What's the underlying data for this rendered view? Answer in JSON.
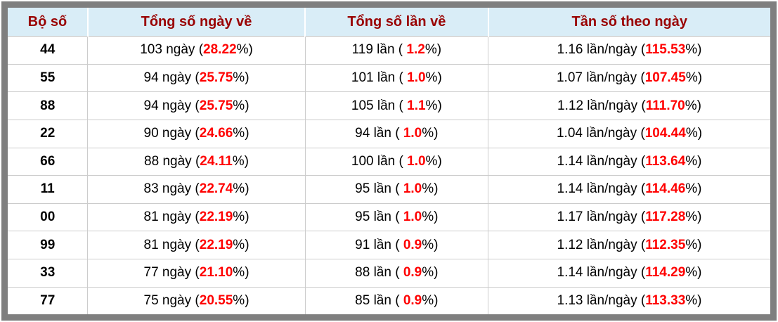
{
  "table": {
    "headers": [
      "Bộ số",
      "Tổng số ngày về",
      "Tổng số lần về",
      "Tần số theo ngày"
    ],
    "rows": [
      {
        "pair": "44",
        "days": "103 ngày",
        "days_pct": "28.22",
        "times": "119 lần",
        "times_pct": "1.2",
        "freq": "1.16 lần/ngày",
        "freq_pct": "115.53"
      },
      {
        "pair": "55",
        "days": "94 ngày",
        "days_pct": "25.75",
        "times": "101 lần",
        "times_pct": "1.0",
        "freq": "1.07 lần/ngày",
        "freq_pct": "107.45"
      },
      {
        "pair": "88",
        "days": "94 ngày",
        "days_pct": "25.75",
        "times": "105 lần",
        "times_pct": "1.1",
        "freq": "1.12 lần/ngày",
        "freq_pct": "111.70"
      },
      {
        "pair": "22",
        "days": "90 ngày",
        "days_pct": "24.66",
        "times": "94 lần",
        "times_pct": "1.0",
        "freq": "1.04 lần/ngày",
        "freq_pct": "104.44"
      },
      {
        "pair": "66",
        "days": "88 ngày",
        "days_pct": "24.11",
        "times": "100 lần",
        "times_pct": "1.0",
        "freq": "1.14 lần/ngày",
        "freq_pct": "113.64"
      },
      {
        "pair": "11",
        "days": "83 ngày",
        "days_pct": "22.74",
        "times": "95 lần",
        "times_pct": "1.0",
        "freq": "1.14 lần/ngày",
        "freq_pct": "114.46"
      },
      {
        "pair": "00",
        "days": "81 ngày",
        "days_pct": "22.19",
        "times": "95 lần",
        "times_pct": "1.0",
        "freq": "1.17 lần/ngày",
        "freq_pct": "117.28"
      },
      {
        "pair": "99",
        "days": "81 ngày",
        "days_pct": "22.19",
        "times": "91 lần",
        "times_pct": "0.9",
        "freq": "1.12 lần/ngày",
        "freq_pct": "112.35"
      },
      {
        "pair": "33",
        "days": "77 ngày",
        "days_pct": "21.10",
        "times": "88 lần",
        "times_pct": "0.9",
        "freq": "1.14 lần/ngày",
        "freq_pct": "114.29"
      },
      {
        "pair": "77",
        "days": "75 ngày",
        "days_pct": "20.55",
        "times": "85 lần",
        "times_pct": "0.9",
        "freq": "1.13 lần/ngày",
        "freq_pct": "113.33"
      }
    ]
  },
  "chart_data": {
    "type": "table",
    "columns": [
      "Bộ số",
      "Tổng số ngày về",
      "Tổng số lần về",
      "Tần số theo ngày"
    ],
    "rows": [
      [
        "44",
        "103 ngày (28.22%)",
        "119 lần ( 1.2%)",
        "1.16 lần/ngày (115.53%)"
      ],
      [
        "55",
        "94 ngày (25.75%)",
        "101 lần ( 1.0%)",
        "1.07 lần/ngày (107.45%)"
      ],
      [
        "88",
        "94 ngày (25.75%)",
        "105 lần ( 1.1%)",
        "1.12 lần/ngày (111.70%)"
      ],
      [
        "22",
        "90 ngày (24.66%)",
        "94 lần ( 1.0%)",
        "1.04 lần/ngày (104.44%)"
      ],
      [
        "66",
        "88 ngày (24.11%)",
        "100 lần ( 1.0%)",
        "1.14 lần/ngày (113.64%)"
      ],
      [
        "11",
        "83 ngày (22.74%)",
        "95 lần ( 1.0%)",
        "1.14 lần/ngày (114.46%)"
      ],
      [
        "00",
        "81 ngày (22.19%)",
        "95 lần ( 1.0%)",
        "1.17 lần/ngày (117.28%)"
      ],
      [
        "99",
        "81 ngày (22.19%)",
        "91 lần ( 0.9%)",
        "1.12 lần/ngày (112.35%)"
      ],
      [
        "33",
        "77 ngày (21.10%)",
        "88 lần ( 0.9%)",
        "1.14 lần/ngày (114.29%)"
      ],
      [
        "77",
        "75 ngày (20.55%)",
        "85 lần ( 0.9%)",
        "1.13 lần/ngày (113.33%)"
      ]
    ]
  },
  "colors": {
    "header_bg": "#d9edf7",
    "header_text": "#990000",
    "highlight_red": "#ff0000",
    "frame_gray": "#7f7f7f",
    "grid_line": "#cccccc"
  }
}
